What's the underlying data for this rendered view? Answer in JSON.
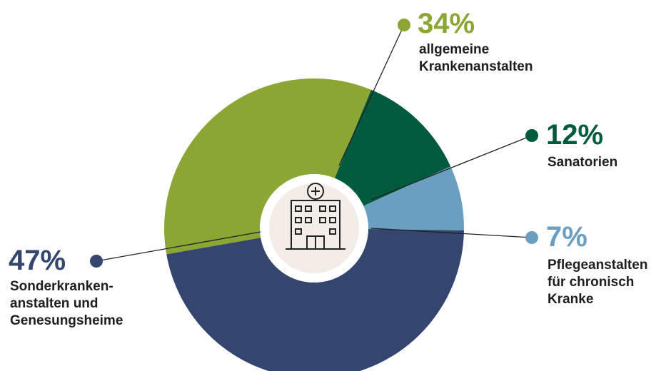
{
  "chart_data": {
    "type": "donut",
    "categories": [
      "allgemeine\nKrankenanstalten",
      "Sanatorien",
      "Pflegeanstalten\nfür chronisch\nKranke",
      "Sonderkranken-\nanstalten und\nGenesungsheime"
    ],
    "values": [
      34,
      12,
      7,
      47
    ],
    "value_labels": [
      "34%",
      "12%",
      "7%",
      "47%"
    ],
    "colors": [
      "#8ba632",
      "#005a3d",
      "#6a9fc2",
      "#34466f"
    ]
  }
}
